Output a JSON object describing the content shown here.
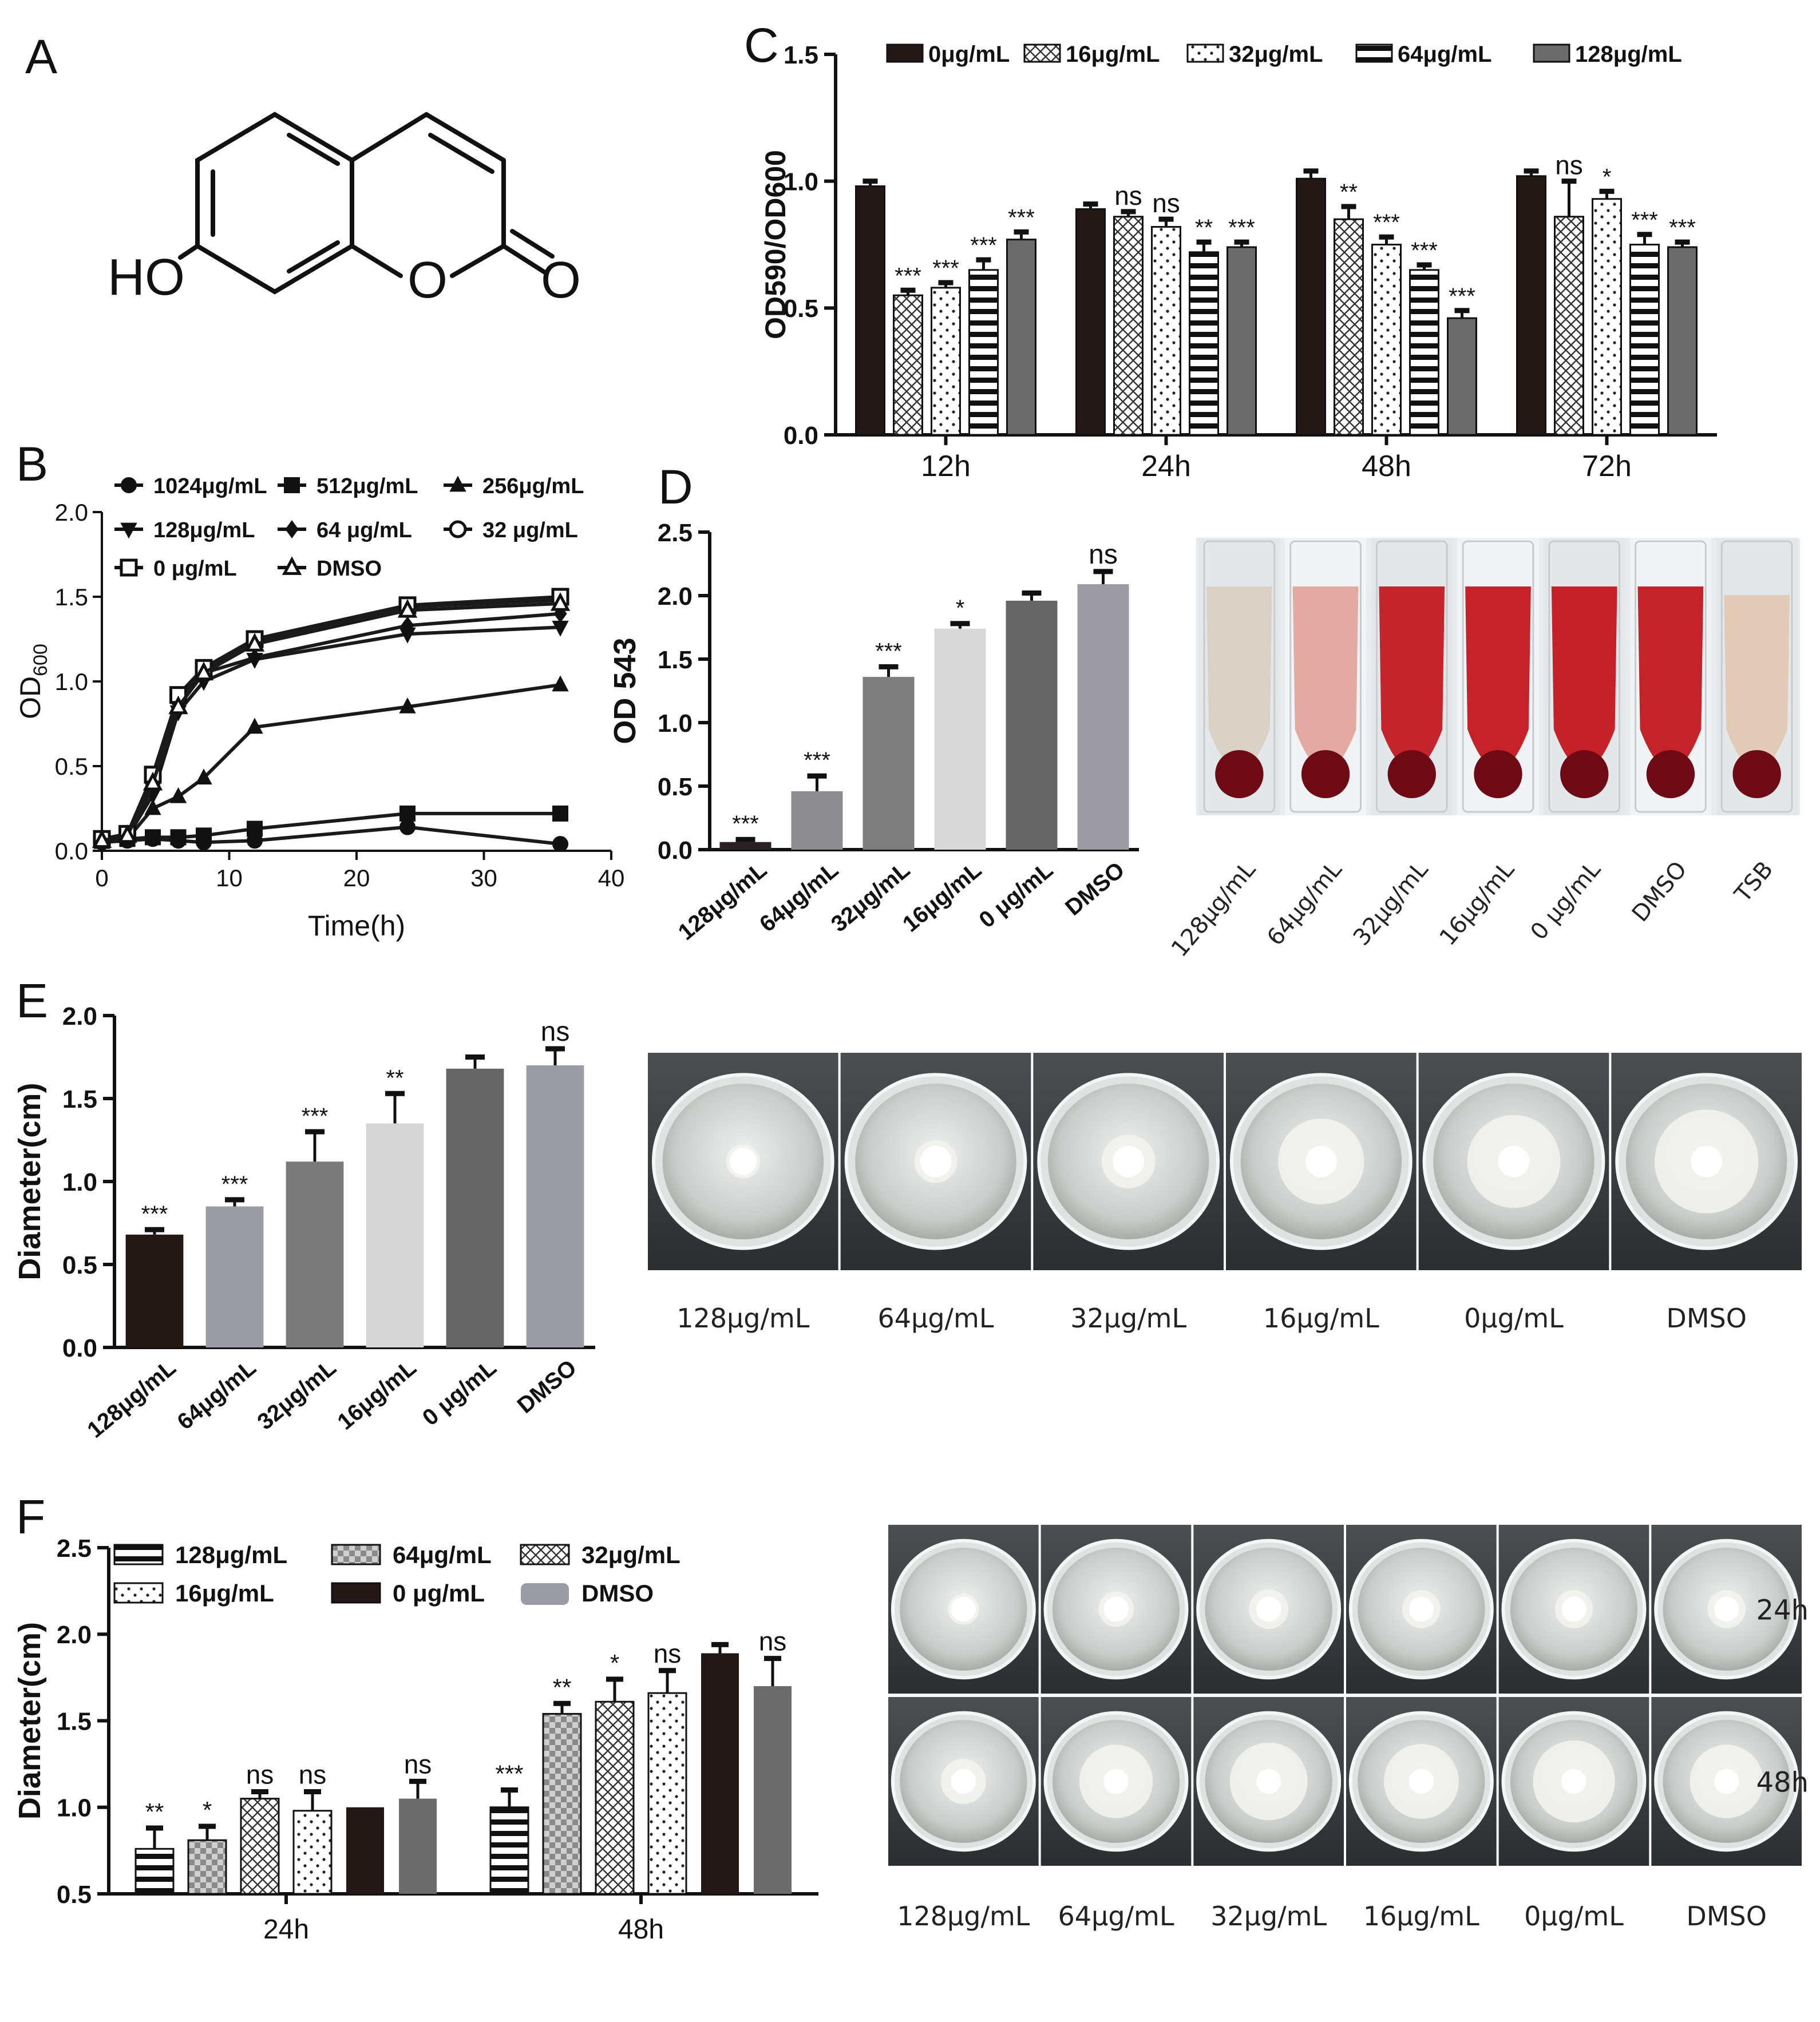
{
  "panels": {
    "A": "A",
    "B": "B",
    "C": "C",
    "D": "D",
    "E": "E",
    "F": "F"
  },
  "molecule": {
    "ho": "HO",
    "o_ring": "O",
    "o_carbonyl": "O"
  },
  "colors": {
    "black": "#231816",
    "dark_gray": "#6b6b6b",
    "mid_gray": "#7e7e7e",
    "light_gray": "#d6d6d6",
    "gray": "#9c9ca4",
    "blood_red": "#b01520",
    "agar": "#d9dcd8"
  },
  "photos": {
    "hemolysis": {
      "labels": [
        "128μg/mL",
        "64μg/mL",
        "32μg/mL",
        "16μg/mL",
        "0 μg/mL",
        "DMSO",
        "TSB"
      ],
      "supernatant": [
        "#d8d0c4",
        "#e2a49e",
        "#c21a22",
        "#c3161f",
        "#c4161f",
        "#c2171f",
        "#e0c9b3"
      ]
    },
    "motility_E": {
      "labels": [
        "128μg/mL",
        "64μg/mL",
        "32μg/mL",
        "16μg/mL",
        "0μg/mL",
        "DMSO"
      ],
      "colony_size": [
        0.19,
        0.24,
        0.3,
        0.48,
        0.52,
        0.58
      ]
    },
    "motility_F": {
      "row_labels": [
        "24h",
        "48h"
      ],
      "labels": [
        "128μg/mL",
        "64μg/mL",
        "32μg/mL",
        "16μg/mL",
        "0μg/mL",
        "DMSO"
      ],
      "size_24h": [
        0.22,
        0.25,
        0.28,
        0.27,
        0.27,
        0.27
      ],
      "size_48h": [
        0.32,
        0.52,
        0.55,
        0.53,
        0.58,
        0.52
      ]
    }
  },
  "chart_data": [
    {
      "id": "B",
      "type": "line",
      "xlabel": "Time(h)",
      "ylabel": "OD",
      "ylabel_sub": "600",
      "xlim": [
        0,
        40
      ],
      "ylim": [
        0,
        2.0
      ],
      "xticks": [
        "0",
        "10",
        "20",
        "30",
        "40"
      ],
      "yticks": [
        "0.0",
        "0.5",
        "1.0",
        "1.5",
        "2.0"
      ],
      "legend": [
        "1024μg/mL",
        "512μg/mL",
        "256μg/mL",
        "128μg/mL",
        "64 μg/mL",
        "32 μg/mL",
        "0 μg/mL",
        "DMSO"
      ],
      "series": [
        {
          "name": "1024μg/mL",
          "marker": "circle",
          "points": [
            [
              0,
              0.05
            ],
            [
              2,
              0.06
            ],
            [
              4,
              0.07
            ],
            [
              6,
              0.06
            ],
            [
              8,
              0.05
            ],
            [
              12,
              0.06
            ],
            [
              24,
              0.14
            ],
            [
              36,
              0.04
            ]
          ]
        },
        {
          "name": "512μg/mL",
          "marker": "square",
          "points": [
            [
              0,
              0.06
            ],
            [
              2,
              0.07
            ],
            [
              4,
              0.08
            ],
            [
              6,
              0.08
            ],
            [
              8,
              0.09
            ],
            [
              12,
              0.13
            ],
            [
              24,
              0.22
            ],
            [
              36,
              0.22
            ]
          ]
        },
        {
          "name": "256μg/mL",
          "marker": "triangle",
          "points": [
            [
              0,
              0.05
            ],
            [
              2,
              0.07
            ],
            [
              4,
              0.25
            ],
            [
              6,
              0.32
            ],
            [
              8,
              0.43
            ],
            [
              12,
              0.73
            ],
            [
              24,
              0.85
            ],
            [
              36,
              0.98
            ]
          ]
        },
        {
          "name": "128μg/mL",
          "marker": "tri-down",
          "points": [
            [
              0,
              0.06
            ],
            [
              2,
              0.08
            ],
            [
              4,
              0.33
            ],
            [
              6,
              0.82
            ],
            [
              8,
              1.0
            ],
            [
              12,
              1.13
            ],
            [
              24,
              1.28
            ],
            [
              36,
              1.32
            ]
          ]
        },
        {
          "name": "64 μg/mL",
          "marker": "diamond",
          "points": [
            [
              0,
              0.06
            ],
            [
              2,
              0.09
            ],
            [
              4,
              0.38
            ],
            [
              6,
              0.88
            ],
            [
              8,
              1.05
            ],
            [
              12,
              1.14
            ],
            [
              24,
              1.33
            ],
            [
              36,
              1.4
            ]
          ]
        },
        {
          "name": "32 μg/mL",
          "marker": "circle-open",
          "points": [
            [
              0,
              0.06
            ],
            [
              2,
              0.09
            ],
            [
              4,
              0.42
            ],
            [
              6,
              0.9
            ],
            [
              8,
              1.07
            ],
            [
              12,
              1.24
            ],
            [
              24,
              1.44
            ],
            [
              36,
              1.48
            ]
          ]
        },
        {
          "name": "0 μg/mL",
          "marker": "square-open",
          "points": [
            [
              0,
              0.07
            ],
            [
              2,
              0.1
            ],
            [
              4,
              0.45
            ],
            [
              6,
              0.92
            ],
            [
              8,
              1.08
            ],
            [
              12,
              1.25
            ],
            [
              24,
              1.45
            ],
            [
              36,
              1.5
            ]
          ]
        },
        {
          "name": "DMSO",
          "marker": "triangle-open",
          "points": [
            [
              0,
              0.06
            ],
            [
              2,
              0.09
            ],
            [
              4,
              0.4
            ],
            [
              6,
              0.85
            ],
            [
              8,
              1.05
            ],
            [
              12,
              1.22
            ],
            [
              24,
              1.42
            ],
            [
              36,
              1.46
            ]
          ]
        }
      ]
    },
    {
      "id": "C",
      "type": "bar",
      "ylabel": "OD590/OD600",
      "ylim": [
        0,
        1.5
      ],
      "yticks": [
        "0.0",
        "0.5",
        "1.0",
        "1.5"
      ],
      "categories": [
        "12h",
        "24h",
        "48h",
        "72h"
      ],
      "legend": [
        "0μg/mL",
        "16μg/mL",
        "32μg/mL",
        "64μg/mL",
        "128μg/mL"
      ],
      "series": [
        {
          "name": "0μg/mL",
          "fill": "black",
          "values": [
            0.98,
            0.89,
            1.01,
            1.02
          ],
          "errors": [
            0.02,
            0.02,
            0.03,
            0.02
          ],
          "sig": [
            "",
            "",
            "",
            ""
          ]
        },
        {
          "name": "16μg/mL",
          "fill": "cross",
          "values": [
            0.55,
            0.86,
            0.85,
            0.86
          ],
          "errors": [
            0.02,
            0.02,
            0.05,
            0.14
          ],
          "sig": [
            "***",
            "ns",
            "**",
            "ns"
          ]
        },
        {
          "name": "32μg/mL",
          "fill": "dots",
          "values": [
            0.58,
            0.82,
            0.75,
            0.93
          ],
          "errors": [
            0.02,
            0.03,
            0.03,
            0.03
          ],
          "sig": [
            "***",
            "ns",
            "***",
            "*"
          ]
        },
        {
          "name": "64μg/mL",
          "fill": "hstripe",
          "values": [
            0.65,
            0.72,
            0.65,
            0.75
          ],
          "errors": [
            0.04,
            0.04,
            0.02,
            0.04
          ],
          "sig": [
            "***",
            "**",
            "***",
            "***"
          ]
        },
        {
          "name": "128μg/mL",
          "fill": "gray",
          "values": [
            0.77,
            0.74,
            0.46,
            0.74
          ],
          "errors": [
            0.03,
            0.02,
            0.03,
            0.02
          ],
          "sig": [
            "***",
            "***",
            "***",
            "***"
          ]
        }
      ]
    },
    {
      "id": "D",
      "type": "bar",
      "ylabel": "OD 543",
      "ylim": [
        0,
        2.5
      ],
      "yticks": [
        "0.0",
        "0.5",
        "1.0",
        "1.5",
        "2.0",
        "2.5"
      ],
      "categories": [
        "128μg/mL",
        "64μg/mL",
        "32μg/mL",
        "16μg/mL",
        "0 μg/mL",
        "DMSO"
      ],
      "values": [
        0.06,
        0.46,
        1.36,
        1.74,
        1.96,
        2.09
      ],
      "errors": [
        0.02,
        0.12,
        0.08,
        0.04,
        0.06,
        0.1
      ],
      "sig": [
        "***",
        "***",
        "***",
        "*",
        "",
        "ns"
      ],
      "fills": [
        "#2a2326",
        "#8d8d8f",
        "#7e7e7e",
        "#d8d8d8",
        "#666666",
        "#9c9ca2"
      ]
    },
    {
      "id": "E",
      "type": "bar",
      "ylabel": "Diameter(cm)",
      "ylim": [
        0,
        2.0
      ],
      "yticks": [
        "0.0",
        "0.5",
        "1.0",
        "1.5",
        "2.0"
      ],
      "categories": [
        "128μg/mL",
        "64μg/mL",
        "32μg/mL",
        "16μg/mL",
        "0 μg/mL",
        "DMSO"
      ],
      "values": [
        0.68,
        0.85,
        1.12,
        1.35,
        1.68,
        1.7
      ],
      "errors": [
        0.03,
        0.04,
        0.18,
        0.18,
        0.07,
        0.1
      ],
      "sig": [
        "***",
        "***",
        "***",
        "**",
        "",
        "ns"
      ],
      "fills": [
        "#231816",
        "#9c9ca4",
        "#7a7a7a",
        "#d6d6d6",
        "#666666",
        "#9c9ca4"
      ]
    },
    {
      "id": "F",
      "type": "bar",
      "ylabel": "Diameter(cm)",
      "ylim": [
        0.5,
        2.5
      ],
      "yticks": [
        "0.5",
        "1.0",
        "1.5",
        "2.0",
        "2.5"
      ],
      "categories": [
        "24h",
        "48h"
      ],
      "legend": [
        "128μg/mL",
        "64μg/mL",
        "32μg/mL",
        "16μg/mL",
        "0 μg/mL",
        "DMSO"
      ],
      "series": [
        {
          "name": "128μg/mL",
          "fill": "hstripe",
          "values": [
            0.76,
            1.0
          ],
          "errors": [
            0.12,
            0.1
          ],
          "sig": [
            "**",
            "***"
          ]
        },
        {
          "name": "64μg/mL",
          "fill": "checker",
          "values": [
            0.81,
            1.54
          ],
          "errors": [
            0.08,
            0.06
          ],
          "sig": [
            "*",
            "**"
          ]
        },
        {
          "name": "32μg/mL",
          "fill": "cross",
          "values": [
            1.05,
            1.61
          ],
          "errors": [
            0.04,
            0.13
          ],
          "sig": [
            "ns",
            "*"
          ]
        },
        {
          "name": "16μg/mL",
          "fill": "dots",
          "values": [
            0.98,
            1.66
          ],
          "errors": [
            0.11,
            0.13
          ],
          "sig": [
            "ns",
            "ns"
          ]
        },
        {
          "name": "0 μg/mL",
          "fill": "black",
          "values": [
            1.0,
            1.89
          ],
          "errors": [
            0.0,
            0.05
          ],
          "sig": [
            "",
            ""
          ]
        },
        {
          "name": "DMSO",
          "fill": "gray",
          "values": [
            1.05,
            1.7
          ],
          "errors": [
            0.1,
            0.16
          ],
          "sig": [
            "ns",
            "ns"
          ]
        }
      ]
    }
  ]
}
